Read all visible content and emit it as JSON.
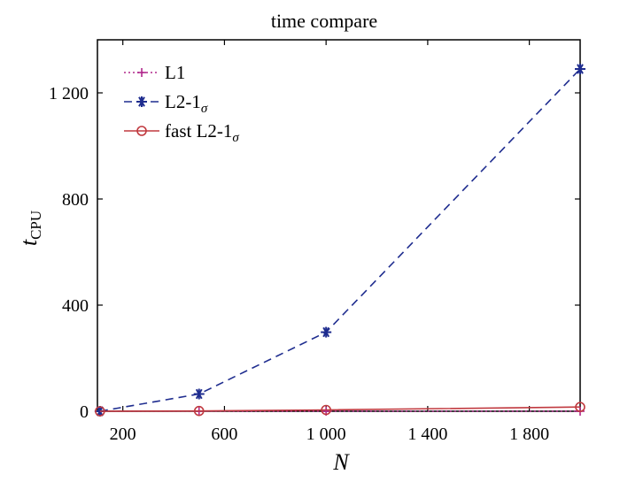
{
  "chart_data": {
    "type": "line",
    "title": "time compare",
    "xlabel": "N",
    "ylabel": {
      "main": "t",
      "sub": "CPU"
    },
    "xlim": [
      100,
      2000
    ],
    "ylim": [
      0,
      1400
    ],
    "xticks": [
      {
        "value": 200,
        "label": "200"
      },
      {
        "value": 600,
        "label": "600"
      },
      {
        "value": 1000,
        "label": "1 000"
      },
      {
        "value": 1400,
        "label": "1 400"
      },
      {
        "value": 1800,
        "label": "1 800"
      }
    ],
    "yticks": [
      {
        "value": 0,
        "label": "0"
      },
      {
        "value": 400,
        "label": "400"
      },
      {
        "value": 800,
        "label": "800"
      },
      {
        "value": 1200,
        "label": "1 200"
      }
    ],
    "grid": false,
    "legend_position": "top-left",
    "series": [
      {
        "name": "L1",
        "name_sub": "",
        "color": "#b0288c",
        "line_style": "dotted",
        "marker": "plus",
        "x": [
          110,
          500,
          1000,
          2000
        ],
        "y": [
          0,
          0,
          0,
          0
        ]
      },
      {
        "name": "L2-1",
        "name_sub": "σ",
        "color": "#1f2d8f",
        "line_style": "dashed",
        "marker": "asterisk",
        "x": [
          110,
          500,
          1000,
          2000
        ],
        "y": [
          0,
          65,
          298,
          1290
        ]
      },
      {
        "name": "fast L2-1",
        "name_sub": "σ",
        "color": "#c0393f",
        "line_style": "solid",
        "marker": "circle",
        "x": [
          110,
          500,
          1000,
          2000
        ],
        "y": [
          0,
          1,
          5,
          16
        ]
      }
    ]
  }
}
